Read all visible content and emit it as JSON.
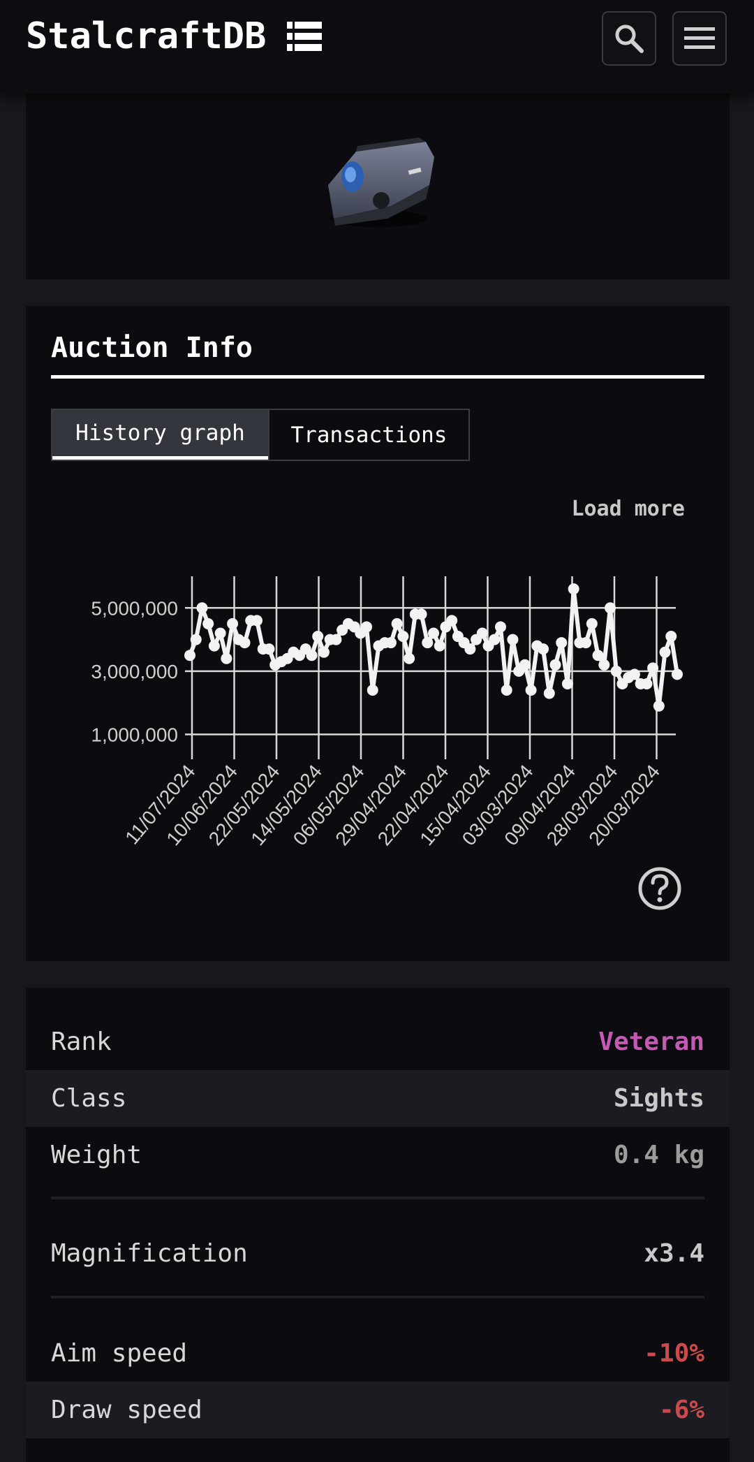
{
  "header": {
    "brand": "StalcraftDB",
    "icons": [
      "list-icon",
      "search-icon",
      "menu-icon"
    ]
  },
  "auction": {
    "title": "Auction Info",
    "tabs": [
      {
        "label": "History graph",
        "active": true
      },
      {
        "label": "Transactions",
        "active": false
      }
    ],
    "load_more": "Load more",
    "help_icon": "help-circle-icon"
  },
  "chart_data": {
    "type": "line",
    "title": "",
    "xlabel": "",
    "ylabel": "",
    "y_ticks": [
      "1,000,000",
      "3,000,000",
      "5,000,000"
    ],
    "y_tick_values": [
      1000000,
      3000000,
      5000000
    ],
    "ylim": [
      700000,
      6000000
    ],
    "x_tick_labels": [
      "11/07/2024",
      "10/06/2024",
      "22/05/2024",
      "14/05/2024",
      "06/05/2024",
      "29/04/2024",
      "22/04/2024",
      "15/04/2024",
      "03/03/2024",
      "09/04/2024",
      "28/03/2024",
      "20/03/2024"
    ],
    "grid": true,
    "legend": "none",
    "line_color": "#f2f2f2",
    "series": [
      {
        "values": [
          3500000,
          4000000,
          5000000,
          4500000,
          3800000,
          4200000,
          3400000,
          4500000,
          4000000,
          3900000,
          4600000,
          4600000,
          3700000,
          3700000,
          3200000,
          3300000,
          3400000,
          3600000,
          3500000,
          3700000,
          3500000,
          4100000,
          3600000,
          4000000,
          4000000,
          4300000,
          4500000,
          4400000,
          4200000,
          4400000,
          2400000,
          3800000,
          3900000,
          3900000,
          4500000,
          4100000,
          3400000,
          4800000,
          4800000,
          3900000,
          4200000,
          3800000,
          4400000,
          4600000,
          4100000,
          3900000,
          3700000,
          4000000,
          4200000,
          3800000,
          4000000,
          4400000,
          2400000,
          4000000,
          3000000,
          3200000,
          2400000,
          3800000,
          3700000,
          2300000,
          3200000,
          3900000,
          2600000,
          5600000,
          3900000,
          3900000,
          4500000,
          3500000,
          3200000,
          5000000,
          3000000,
          2600000,
          2800000,
          2900000,
          2600000,
          2600000,
          3100000,
          1900000,
          3600000,
          4100000,
          2900000
        ]
      }
    ]
  },
  "stats": [
    {
      "label": "Rank",
      "value": "Veteran",
      "color": "#c45ab3"
    },
    {
      "label": "Class",
      "value": "Sights",
      "color": "#c9c9c9"
    },
    {
      "label": "Weight",
      "value": "0.4 kg",
      "color": "#9c9c9c"
    },
    {
      "label": "Magnification",
      "value": "x3.4",
      "color": "#c9c9c9"
    },
    {
      "label": "Aim speed",
      "value": "-10%",
      "color": "#c94b4b"
    },
    {
      "label": "Draw speed",
      "value": "-6%",
      "color": "#c94b4b"
    }
  ]
}
